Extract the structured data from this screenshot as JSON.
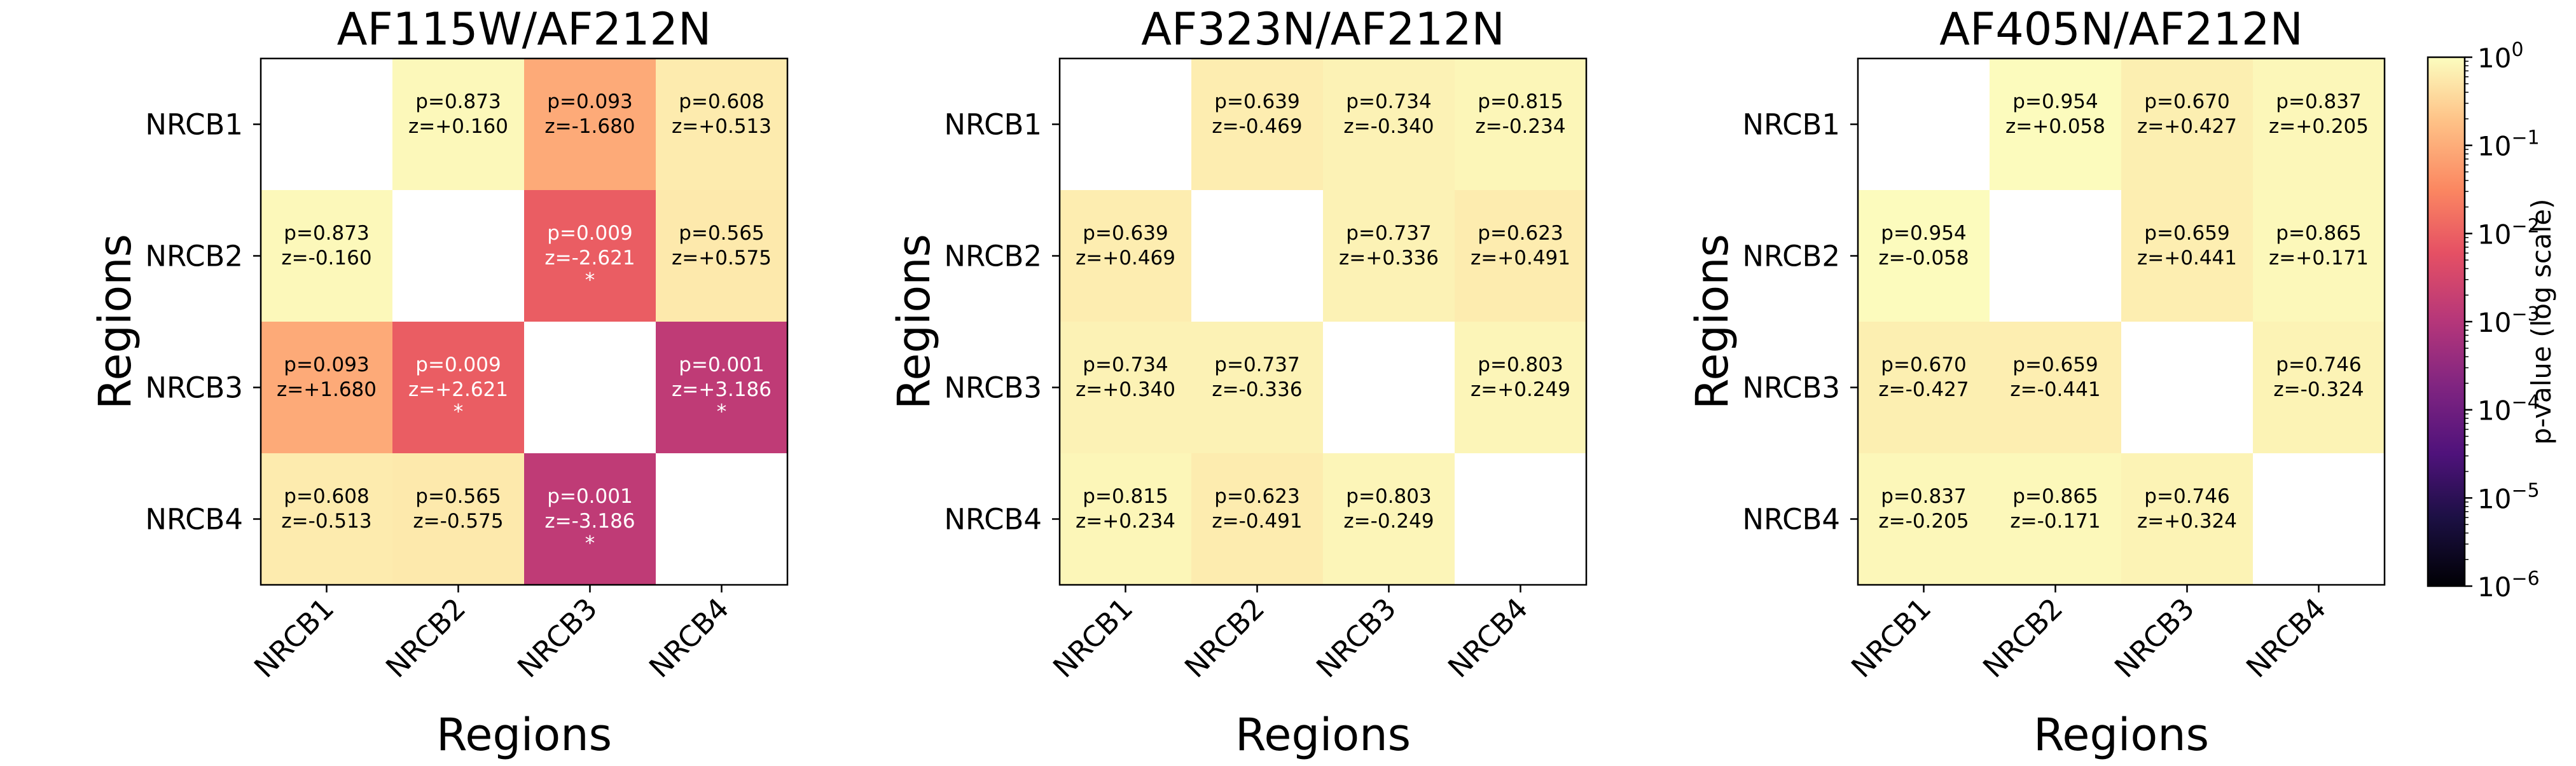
{
  "chart_data": [
    {
      "type": "heatmap",
      "title": "AF115W/AF212N",
      "xlabel": "Regions",
      "ylabel": "Regions",
      "categories": [
        "NRCB1",
        "NRCB2",
        "NRCB3",
        "NRCB4"
      ],
      "cells": [
        [
          null,
          {
            "p": "p=0.873",
            "z": "z=+0.160",
            "sig": "",
            "p_value": 0.873
          },
          {
            "p": "p=0.093",
            "z": "z=-1.680",
            "sig": "",
            "p_value": 0.093
          },
          {
            "p": "p=0.608",
            "z": "z=+0.513",
            "sig": "",
            "p_value": 0.608
          }
        ],
        [
          {
            "p": "p=0.873",
            "z": "z=-0.160",
            "sig": "",
            "p_value": 0.873
          },
          null,
          {
            "p": "p=0.009",
            "z": "z=-2.621",
            "sig": "*",
            "p_value": 0.0088
          },
          {
            "p": "p=0.565",
            "z": "z=+0.575",
            "sig": "",
            "p_value": 0.565
          }
        ],
        [
          {
            "p": "p=0.093",
            "z": "z=+1.680",
            "sig": "",
            "p_value": 0.093
          },
          {
            "p": "p=0.009",
            "z": "z=+2.621",
            "sig": "*",
            "p_value": 0.0088
          },
          null,
          {
            "p": "p=0.001",
            "z": "z=+3.186",
            "sig": "*",
            "p_value": 0.00144
          }
        ],
        [
          {
            "p": "p=0.608",
            "z": "z=-0.513",
            "sig": "",
            "p_value": 0.608
          },
          {
            "p": "p=0.565",
            "z": "z=-0.575",
            "sig": "",
            "p_value": 0.565
          },
          {
            "p": "p=0.001",
            "z": "z=-3.186",
            "sig": "*",
            "p_value": 0.00144
          },
          null
        ]
      ]
    },
    {
      "type": "heatmap",
      "title": "AF323N/AF212N",
      "xlabel": "Regions",
      "ylabel": "Regions",
      "categories": [
        "NRCB1",
        "NRCB2",
        "NRCB3",
        "NRCB4"
      ],
      "cells": [
        [
          null,
          {
            "p": "p=0.639",
            "z": "z=-0.469",
            "sig": "",
            "p_value": 0.639
          },
          {
            "p": "p=0.734",
            "z": "z=-0.340",
            "sig": "",
            "p_value": 0.734
          },
          {
            "p": "p=0.815",
            "z": "z=-0.234",
            "sig": "",
            "p_value": 0.815
          }
        ],
        [
          {
            "p": "p=0.639",
            "z": "z=+0.469",
            "sig": "",
            "p_value": 0.639
          },
          null,
          {
            "p": "p=0.737",
            "z": "z=+0.336",
            "sig": "",
            "p_value": 0.737
          },
          {
            "p": "p=0.623",
            "z": "z=+0.491",
            "sig": "",
            "p_value": 0.623
          }
        ],
        [
          {
            "p": "p=0.734",
            "z": "z=+0.340",
            "sig": "",
            "p_value": 0.734
          },
          {
            "p": "p=0.737",
            "z": "z=-0.336",
            "sig": "",
            "p_value": 0.737
          },
          null,
          {
            "p": "p=0.803",
            "z": "z=+0.249",
            "sig": "",
            "p_value": 0.803
          }
        ],
        [
          {
            "p": "p=0.815",
            "z": "z=+0.234",
            "sig": "",
            "p_value": 0.815
          },
          {
            "p": "p=0.623",
            "z": "z=-0.491",
            "sig": "",
            "p_value": 0.623
          },
          {
            "p": "p=0.803",
            "z": "z=-0.249",
            "sig": "",
            "p_value": 0.803
          },
          null
        ]
      ]
    },
    {
      "type": "heatmap",
      "title": "AF405N/AF212N",
      "xlabel": "Regions",
      "ylabel": "Regions",
      "categories": [
        "NRCB1",
        "NRCB2",
        "NRCB3",
        "NRCB4"
      ],
      "cells": [
        [
          null,
          {
            "p": "p=0.954",
            "z": "z=+0.058",
            "sig": "",
            "p_value": 0.954
          },
          {
            "p": "p=0.670",
            "z": "z=+0.427",
            "sig": "",
            "p_value": 0.67
          },
          {
            "p": "p=0.837",
            "z": "z=+0.205",
            "sig": "",
            "p_value": 0.837
          }
        ],
        [
          {
            "p": "p=0.954",
            "z": "z=-0.058",
            "sig": "",
            "p_value": 0.954
          },
          null,
          {
            "p": "p=0.659",
            "z": "z=+0.441",
            "sig": "",
            "p_value": 0.659
          },
          {
            "p": "p=0.865",
            "z": "z=+0.171",
            "sig": "",
            "p_value": 0.865
          }
        ],
        [
          {
            "p": "p=0.670",
            "z": "z=-0.427",
            "sig": "",
            "p_value": 0.67
          },
          {
            "p": "p=0.659",
            "z": "z=-0.441",
            "sig": "",
            "p_value": 0.659
          },
          null,
          {
            "p": "p=0.746",
            "z": "z=-0.324",
            "sig": "",
            "p_value": 0.746
          }
        ],
        [
          {
            "p": "p=0.837",
            "z": "z=-0.205",
            "sig": "",
            "p_value": 0.837
          },
          {
            "p": "p=0.865",
            "z": "z=-0.171",
            "sig": "",
            "p_value": 0.865
          },
          {
            "p": "p=0.746",
            "z": "z=+0.324",
            "sig": "",
            "p_value": 0.746
          },
          null
        ]
      ]
    }
  ],
  "colorbar": {
    "label": "p-value (log scale)",
    "scale": "log",
    "range": [
      1e-06,
      1
    ],
    "colormap": "magma",
    "ticks": [
      {
        "base": "10",
        "exp": "0",
        "value": 1
      },
      {
        "base": "10",
        "exp": "−1",
        "value": 0.1
      },
      {
        "base": "10",
        "exp": "−2",
        "value": 0.01
      },
      {
        "base": "10",
        "exp": "−3",
        "value": 0.001
      },
      {
        "base": "10",
        "exp": "−4",
        "value": 0.0001
      },
      {
        "base": "10",
        "exp": "−5",
        "value": 1e-05
      },
      {
        "base": "10",
        "exp": "−6",
        "value": 1e-06
      }
    ]
  }
}
